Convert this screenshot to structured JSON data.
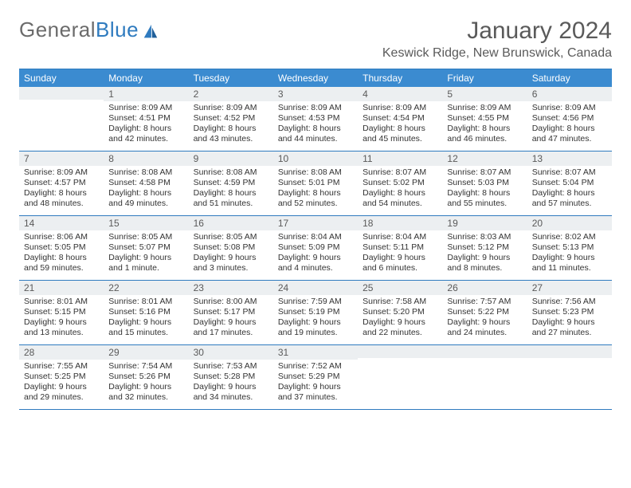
{
  "brand": {
    "part1": "General",
    "part2": "Blue"
  },
  "title": "January 2024",
  "location": "Keswick Ridge, New Brunswick, Canada",
  "colors": {
    "header_bg": "#3b8bd0",
    "border": "#2f7bbf",
    "daynum_bg": "#eceff1",
    "text": "#333333",
    "title_text": "#5a5a5a"
  },
  "weekdays": [
    "Sunday",
    "Monday",
    "Tuesday",
    "Wednesday",
    "Thursday",
    "Friday",
    "Saturday"
  ],
  "weeks": [
    [
      {
        "n": "",
        "sr": "",
        "ss": "",
        "dl": ""
      },
      {
        "n": "1",
        "sr": "Sunrise: 8:09 AM",
        "ss": "Sunset: 4:51 PM",
        "dl": "Daylight: 8 hours and 42 minutes."
      },
      {
        "n": "2",
        "sr": "Sunrise: 8:09 AM",
        "ss": "Sunset: 4:52 PM",
        "dl": "Daylight: 8 hours and 43 minutes."
      },
      {
        "n": "3",
        "sr": "Sunrise: 8:09 AM",
        "ss": "Sunset: 4:53 PM",
        "dl": "Daylight: 8 hours and 44 minutes."
      },
      {
        "n": "4",
        "sr": "Sunrise: 8:09 AM",
        "ss": "Sunset: 4:54 PM",
        "dl": "Daylight: 8 hours and 45 minutes."
      },
      {
        "n": "5",
        "sr": "Sunrise: 8:09 AM",
        "ss": "Sunset: 4:55 PM",
        "dl": "Daylight: 8 hours and 46 minutes."
      },
      {
        "n": "6",
        "sr": "Sunrise: 8:09 AM",
        "ss": "Sunset: 4:56 PM",
        "dl": "Daylight: 8 hours and 47 minutes."
      }
    ],
    [
      {
        "n": "7",
        "sr": "Sunrise: 8:09 AM",
        "ss": "Sunset: 4:57 PM",
        "dl": "Daylight: 8 hours and 48 minutes."
      },
      {
        "n": "8",
        "sr": "Sunrise: 8:08 AM",
        "ss": "Sunset: 4:58 PM",
        "dl": "Daylight: 8 hours and 49 minutes."
      },
      {
        "n": "9",
        "sr": "Sunrise: 8:08 AM",
        "ss": "Sunset: 4:59 PM",
        "dl": "Daylight: 8 hours and 51 minutes."
      },
      {
        "n": "10",
        "sr": "Sunrise: 8:08 AM",
        "ss": "Sunset: 5:01 PM",
        "dl": "Daylight: 8 hours and 52 minutes."
      },
      {
        "n": "11",
        "sr": "Sunrise: 8:07 AM",
        "ss": "Sunset: 5:02 PM",
        "dl": "Daylight: 8 hours and 54 minutes."
      },
      {
        "n": "12",
        "sr": "Sunrise: 8:07 AM",
        "ss": "Sunset: 5:03 PM",
        "dl": "Daylight: 8 hours and 55 minutes."
      },
      {
        "n": "13",
        "sr": "Sunrise: 8:07 AM",
        "ss": "Sunset: 5:04 PM",
        "dl": "Daylight: 8 hours and 57 minutes."
      }
    ],
    [
      {
        "n": "14",
        "sr": "Sunrise: 8:06 AM",
        "ss": "Sunset: 5:05 PM",
        "dl": "Daylight: 8 hours and 59 minutes."
      },
      {
        "n": "15",
        "sr": "Sunrise: 8:05 AM",
        "ss": "Sunset: 5:07 PM",
        "dl": "Daylight: 9 hours and 1 minute."
      },
      {
        "n": "16",
        "sr": "Sunrise: 8:05 AM",
        "ss": "Sunset: 5:08 PM",
        "dl": "Daylight: 9 hours and 3 minutes."
      },
      {
        "n": "17",
        "sr": "Sunrise: 8:04 AM",
        "ss": "Sunset: 5:09 PM",
        "dl": "Daylight: 9 hours and 4 minutes."
      },
      {
        "n": "18",
        "sr": "Sunrise: 8:04 AM",
        "ss": "Sunset: 5:11 PM",
        "dl": "Daylight: 9 hours and 6 minutes."
      },
      {
        "n": "19",
        "sr": "Sunrise: 8:03 AM",
        "ss": "Sunset: 5:12 PM",
        "dl": "Daylight: 9 hours and 8 minutes."
      },
      {
        "n": "20",
        "sr": "Sunrise: 8:02 AM",
        "ss": "Sunset: 5:13 PM",
        "dl": "Daylight: 9 hours and 11 minutes."
      }
    ],
    [
      {
        "n": "21",
        "sr": "Sunrise: 8:01 AM",
        "ss": "Sunset: 5:15 PM",
        "dl": "Daylight: 9 hours and 13 minutes."
      },
      {
        "n": "22",
        "sr": "Sunrise: 8:01 AM",
        "ss": "Sunset: 5:16 PM",
        "dl": "Daylight: 9 hours and 15 minutes."
      },
      {
        "n": "23",
        "sr": "Sunrise: 8:00 AM",
        "ss": "Sunset: 5:17 PM",
        "dl": "Daylight: 9 hours and 17 minutes."
      },
      {
        "n": "24",
        "sr": "Sunrise: 7:59 AM",
        "ss": "Sunset: 5:19 PM",
        "dl": "Daylight: 9 hours and 19 minutes."
      },
      {
        "n": "25",
        "sr": "Sunrise: 7:58 AM",
        "ss": "Sunset: 5:20 PM",
        "dl": "Daylight: 9 hours and 22 minutes."
      },
      {
        "n": "26",
        "sr": "Sunrise: 7:57 AM",
        "ss": "Sunset: 5:22 PM",
        "dl": "Daylight: 9 hours and 24 minutes."
      },
      {
        "n": "27",
        "sr": "Sunrise: 7:56 AM",
        "ss": "Sunset: 5:23 PM",
        "dl": "Daylight: 9 hours and 27 minutes."
      }
    ],
    [
      {
        "n": "28",
        "sr": "Sunrise: 7:55 AM",
        "ss": "Sunset: 5:25 PM",
        "dl": "Daylight: 9 hours and 29 minutes."
      },
      {
        "n": "29",
        "sr": "Sunrise: 7:54 AM",
        "ss": "Sunset: 5:26 PM",
        "dl": "Daylight: 9 hours and 32 minutes."
      },
      {
        "n": "30",
        "sr": "Sunrise: 7:53 AM",
        "ss": "Sunset: 5:28 PM",
        "dl": "Daylight: 9 hours and 34 minutes."
      },
      {
        "n": "31",
        "sr": "Sunrise: 7:52 AM",
        "ss": "Sunset: 5:29 PM",
        "dl": "Daylight: 9 hours and 37 minutes."
      },
      {
        "n": "",
        "sr": "",
        "ss": "",
        "dl": ""
      },
      {
        "n": "",
        "sr": "",
        "ss": "",
        "dl": ""
      },
      {
        "n": "",
        "sr": "",
        "ss": "",
        "dl": ""
      }
    ]
  ]
}
